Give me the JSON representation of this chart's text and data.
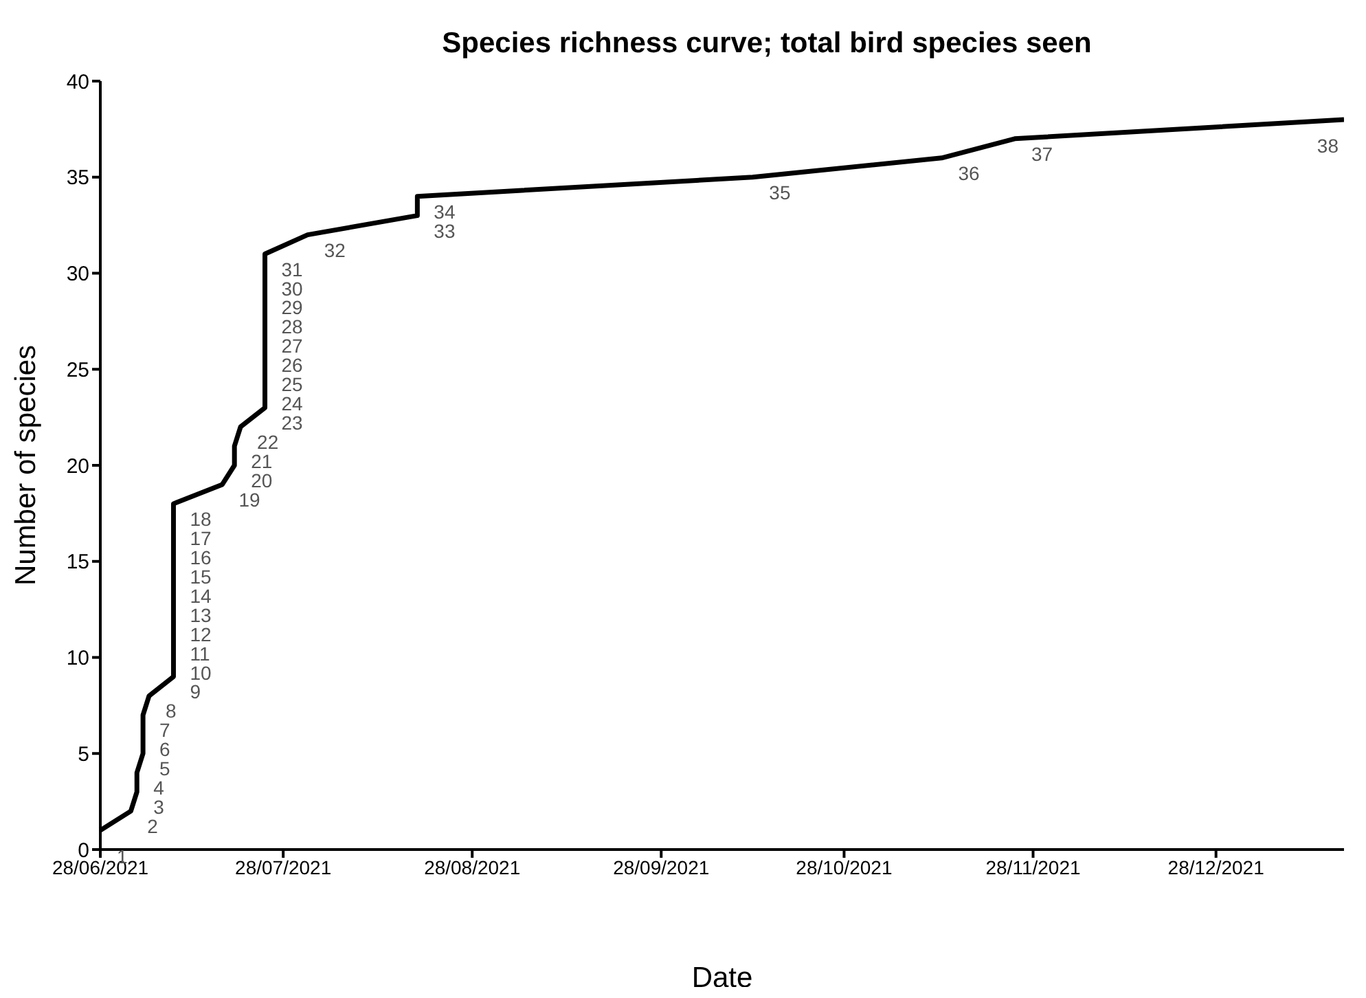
{
  "chart_data": {
    "type": "line",
    "title": "Species richness curve; total bird species seen",
    "xlabel": "Date",
    "ylabel": "Number of species",
    "x": [
      "2021-06-28",
      "2021-07-03",
      "2021-07-04",
      "2021-07-04",
      "2021-07-05",
      "2021-07-05",
      "2021-07-05",
      "2021-07-06",
      "2021-07-10",
      "2021-07-10",
      "2021-07-10",
      "2021-07-10",
      "2021-07-10",
      "2021-07-10",
      "2021-07-10",
      "2021-07-10",
      "2021-07-10",
      "2021-07-10",
      "2021-07-18",
      "2021-07-20",
      "2021-07-20",
      "2021-07-21",
      "2021-07-25",
      "2021-07-25",
      "2021-07-25",
      "2021-07-25",
      "2021-07-25",
      "2021-07-25",
      "2021-07-25",
      "2021-07-25",
      "2021-07-25",
      "2021-08-01",
      "2021-08-19",
      "2021-08-19",
      "2021-10-13",
      "2021-11-13",
      "2021-11-25",
      "2022-01-18"
    ],
    "series": [
      {
        "color": "#000000",
        "values": [
          1,
          2,
          3,
          4,
          5,
          6,
          7,
          8,
          9,
          10,
          11,
          12,
          13,
          14,
          15,
          16,
          17,
          18,
          19,
          20,
          21,
          22,
          23,
          24,
          25,
          26,
          27,
          28,
          29,
          30,
          31,
          32,
          33,
          34,
          35,
          36,
          37,
          38
        ]
      }
    ],
    "data_labels": true,
    "marker": "none",
    "line_style": "solid",
    "grid": false,
    "legend": false,
    "xlim": [
      "2021-06-28",
      "2022-01-18"
    ],
    "xticks": [
      {
        "value": "2021-06-28",
        "label": "28/06/2021"
      },
      {
        "value": "2021-07-28",
        "label": "28/07/2021"
      },
      {
        "value": "2021-08-28",
        "label": "28/08/2021"
      },
      {
        "value": "2021-09-28",
        "label": "28/09/2021"
      },
      {
        "value": "2021-10-28",
        "label": "28/10/2021"
      },
      {
        "value": "2021-11-28",
        "label": "28/11/2021"
      },
      {
        "value": "2021-12-28",
        "label": "28/12/2021"
      }
    ],
    "ylim": [
      0,
      40
    ],
    "yticks": [
      0,
      5,
      10,
      15,
      20,
      25,
      30,
      35,
      40
    ]
  }
}
